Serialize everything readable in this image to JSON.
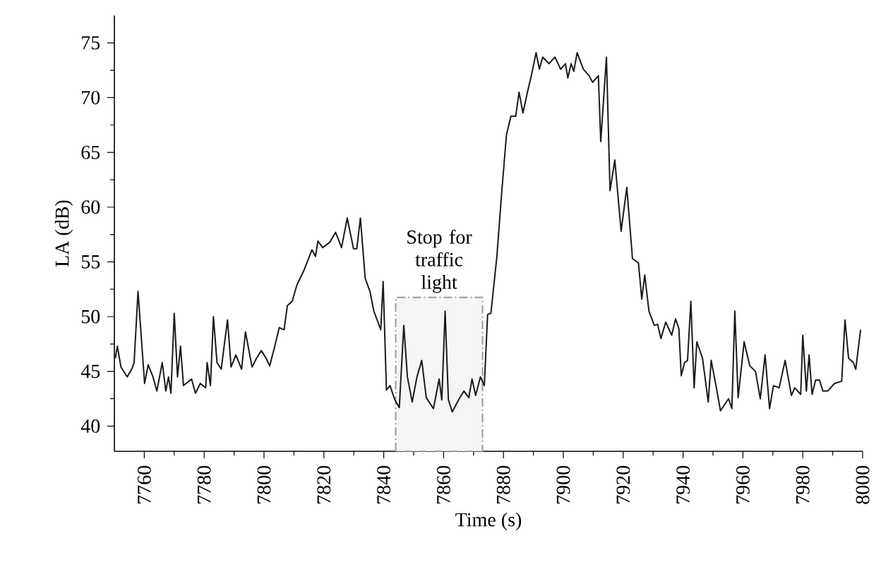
{
  "chart_data": {
    "type": "line",
    "xlabel": "Time (s)",
    "ylabel": "LA (dB)",
    "xlim": [
      7750,
      8000
    ],
    "ylim": [
      37.7,
      77.5
    ],
    "xticks": [
      7760,
      7780,
      7800,
      7820,
      7840,
      7860,
      7880,
      7900,
      7920,
      7940,
      7960,
      7980,
      8000
    ],
    "yticks": [
      40,
      45,
      50,
      55,
      60,
      65,
      70,
      75
    ],
    "bands": [
      {
        "axis": "x",
        "from": 7844,
        "to": 7873,
        "label": "Stop for traffic light",
        "color": "#9a9a9a"
      }
    ],
    "series": [
      {
        "color": "#1a1a1a",
        "x": [
          7750.3,
          7751,
          7752.2,
          7754.3,
          7755.8,
          7756.6,
          7757.9,
          7760.1,
          7761.3,
          7762.9,
          7764.2,
          7766,
          7767.2,
          7768.1,
          7768.9,
          7770,
          7771.1,
          7772.1,
          7773.1,
          7775.8,
          7777.1,
          7778.7,
          7780.5,
          7781,
          7782.1,
          7783.1,
          7784.3,
          7785.7,
          7787.8,
          7789,
          7790.6,
          7792.5,
          7793.8,
          7796,
          7797.5,
          7799.1,
          7800.7,
          7801.9,
          7803.5,
          7805.1,
          7806.7,
          7807.8,
          7809.4,
          7811,
          7813.3,
          7816,
          7817.2,
          7818,
          7819.6,
          7822,
          7823.9,
          7825.9,
          7827.8,
          7829.9,
          7831,
          7832.2,
          7833.8,
          7835.4,
          7836.7,
          7839,
          7839.8,
          7840.9,
          7842.1,
          7843.7,
          7845.2,
          7846.7,
          7847.9,
          7849.5,
          7851.1,
          7852.7,
          7854.2,
          7856.6,
          7858.5,
          7859.4,
          7860.5,
          7861.6,
          7862.9,
          7865.2,
          7866.8,
          7868.4,
          7869.5,
          7870.7,
          7872.3,
          7873.6,
          7874.7,
          7875.8,
          7877.8,
          7879.4,
          7881,
          7882.5,
          7884.1,
          7885.2,
          7886.5,
          7888,
          7889.3,
          7890.9,
          7892,
          7893.1,
          7895.2,
          7897.2,
          7899.1,
          7900.7,
          7901.5,
          7902.6,
          7903.5,
          7904.6,
          7906.7,
          7908.6,
          7909.8,
          7911.7,
          7912.5,
          7914.4,
          7915.6,
          7917.2,
          7919.3,
          7921.2,
          7923.1,
          7925.1,
          7926.2,
          7927.2,
          7928.6,
          7930.4,
          7931.5,
          7932.6,
          7934.2,
          7936.2,
          7937.5,
          7938.6,
          7939.4,
          7940.5,
          7941.5,
          7942.6,
          7943.7,
          7944.6,
          7946.5,
          7948.4,
          7949.4,
          7951,
          7952.5,
          7955.2,
          7956.3,
          7957.3,
          7958.4,
          7960.4,
          7962.3,
          7964.2,
          7965.8,
          7967.4,
          7968.9,
          7970.2,
          7972.1,
          7974.1,
          7976.2,
          7977.3,
          7979.3,
          7980,
          7981.2,
          7982.1,
          7983.1,
          7984.3,
          7985.6,
          7986.7,
          7988.3,
          7990.6,
          7993,
          7994.1,
          7995.3,
          7996.9,
          7997.7,
          7999.3
        ],
        "values": [
          46.2,
          47.3,
          45.4,
          44.5,
          45.2,
          45.8,
          52.3,
          43.9,
          45.6,
          44.5,
          43.2,
          45.8,
          43.2,
          44.5,
          43,
          50.3,
          44.5,
          47.3,
          43.7,
          44.3,
          43,
          43.9,
          43.5,
          45.8,
          43.7,
          50,
          45.8,
          45.2,
          49.7,
          45.4,
          46.5,
          45.2,
          48.6,
          45.4,
          46.2,
          46.9,
          46.2,
          45.5,
          47.2,
          49,
          48.8,
          51,
          51.4,
          52.9,
          54.2,
          56.1,
          55.5,
          56.9,
          56.3,
          56.8,
          57.7,
          56.3,
          59,
          56.2,
          56.2,
          59,
          53.5,
          52.3,
          50.5,
          48.8,
          53.2,
          43.3,
          43.7,
          42.4,
          41.7,
          49.2,
          44.5,
          42.2,
          44.5,
          46,
          42.6,
          41.6,
          44.3,
          42.4,
          50.5,
          42.4,
          41.3,
          42.5,
          43.2,
          42.6,
          44.3,
          42.8,
          44.5,
          43.7,
          50.2,
          50.3,
          55.5,
          61.3,
          66.6,
          68.3,
          68.3,
          70.5,
          68.6,
          70.5,
          72,
          74.1,
          72.6,
          73.7,
          73.1,
          73.7,
          72.6,
          73.1,
          71.8,
          73.1,
          72.4,
          74.1,
          72.6,
          72,
          71.4,
          72,
          66,
          73.7,
          61.5,
          64.3,
          57.8,
          61.8,
          55.3,
          54.9,
          51.6,
          53.8,
          50.5,
          49.2,
          49.3,
          48,
          49.5,
          48.3,
          49.8,
          48.9,
          44.6,
          45.8,
          46,
          51.4,
          43.5,
          47.7,
          46.2,
          42.2,
          46,
          43.7,
          41.4,
          42.5,
          41.6,
          50.5,
          42.6,
          47.7,
          45.5,
          45,
          42.5,
          46.5,
          41.6,
          43.7,
          43.5,
          46,
          42.8,
          43.5,
          42.9,
          48.3,
          43.2,
          46.5,
          42.9,
          44.2,
          44.2,
          43.2,
          43.2,
          43.9,
          44.1,
          49.7,
          46.2,
          45.8,
          45.2,
          48.8
        ]
      }
    ]
  }
}
